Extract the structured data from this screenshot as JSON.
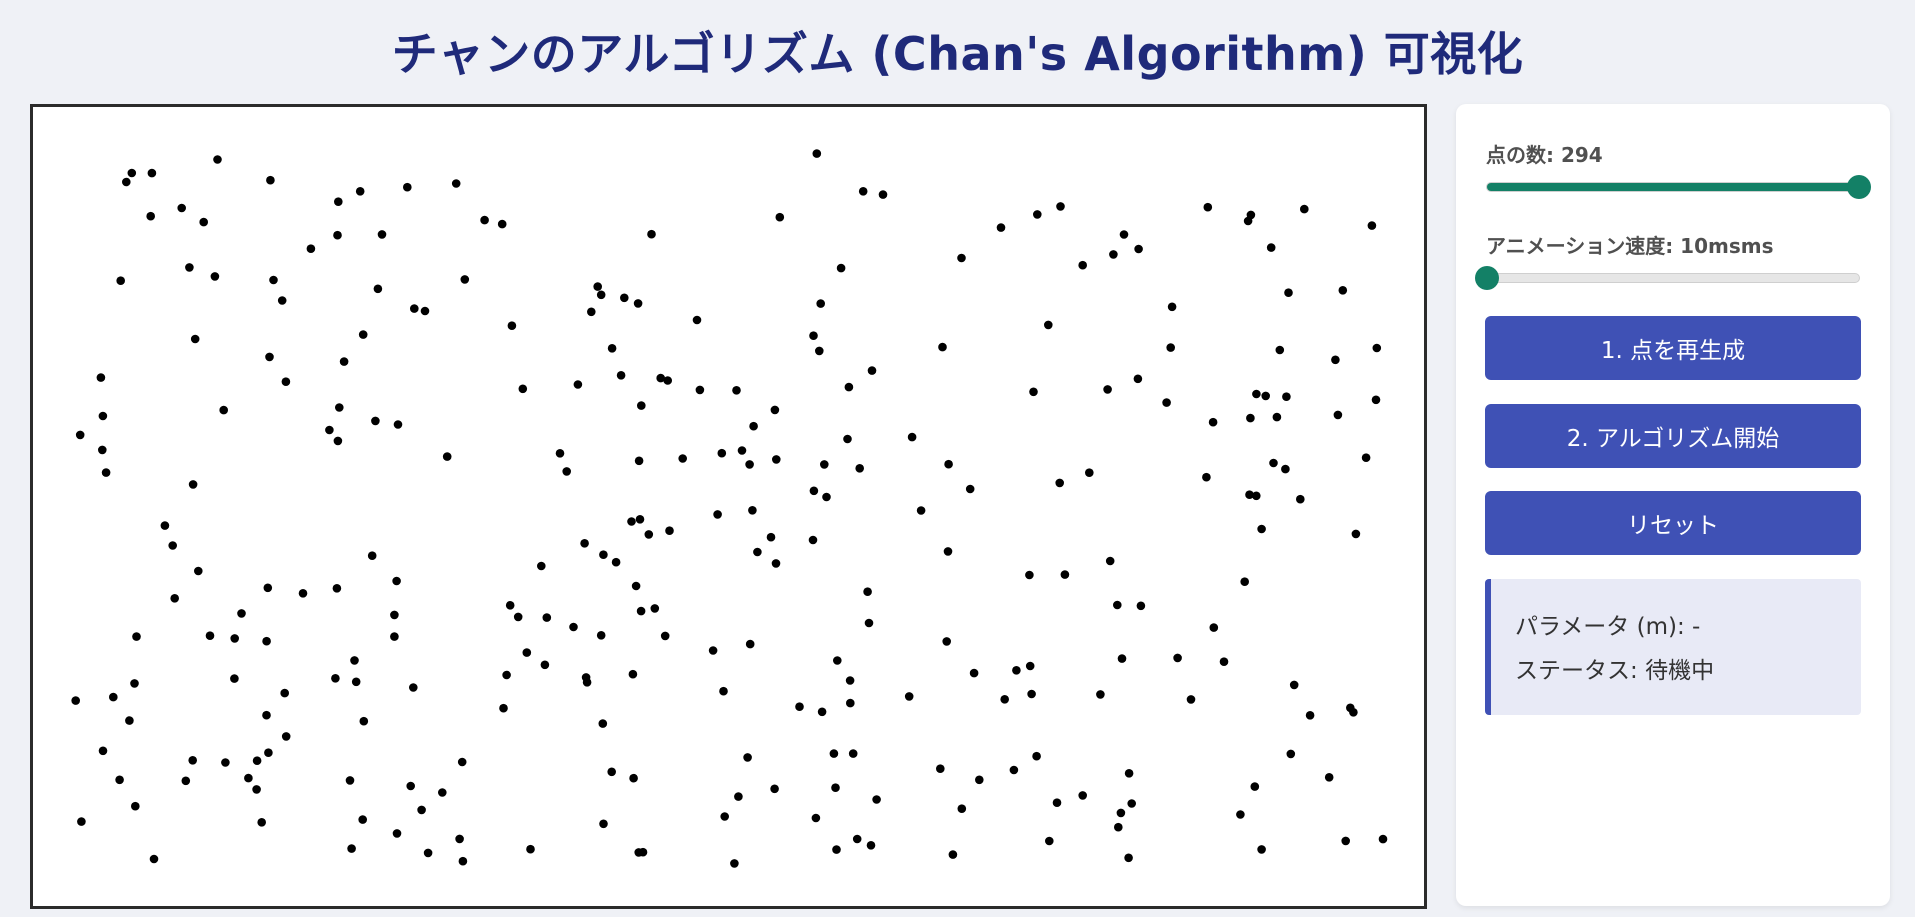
{
  "title": "チャンのアルゴリズム (Chan's Algorithm) 可視化",
  "controls": {
    "point_count": {
      "label_prefix": "点の数: ",
      "value": "294",
      "slider_fraction": 1.0
    },
    "speed": {
      "label_prefix": "アニメーション速度: ",
      "value": "10msms",
      "slider_fraction": 0.0
    },
    "buttons": {
      "regenerate": "1. 点を再生成",
      "start": "2. アルゴリズム開始",
      "reset": "リセット"
    }
  },
  "info": {
    "param_label": "パラメータ (m): ",
    "param_value": "-",
    "status_label": "ステータス: ",
    "status_value": "待機中"
  },
  "colors": {
    "title": "#1f2a7a",
    "button": "#3f51b5",
    "slider": "#138066",
    "point": "#000000"
  }
}
